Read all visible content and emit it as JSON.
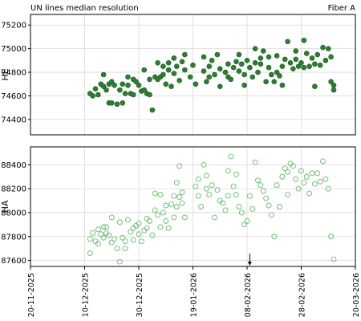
{
  "header": {
    "title": "UN lines median resolution",
    "right_label": "Fiber A"
  },
  "colors": {
    "he_fill": "#2e7d32",
    "he_edge": "#1b5e20",
    "ha_edge": "#66bb6a",
    "grid": "#d9d9d9",
    "axes": "#000000"
  },
  "chart_data": [
    {
      "type": "scatter",
      "panel": "top",
      "title": "UN lines median resolution",
      "ylabel": "HE",
      "xlim": [
        "2025-11-20",
        "2026-03-20"
      ],
      "ylim": [
        74270,
        75290
      ],
      "yticks": [
        74400,
        74600,
        74800,
        75000,
        75200
      ],
      "grid": true,
      "marker": "filled-circle",
      "series": [
        {
          "points": [
            [
              "2025-12-12",
              74620
            ],
            [
              "2025-12-13",
              74600
            ],
            [
              "2025-12-14",
              74660
            ],
            [
              "2025-12-15",
              74610
            ],
            [
              "2025-12-16",
              74700
            ],
            [
              "2025-12-17",
              74780
            ],
            [
              "2025-12-17",
              74680
            ],
            [
              "2025-12-18",
              74650
            ],
            [
              "2025-12-19",
              74540
            ],
            [
              "2025-12-19",
              74700
            ],
            [
              "2025-12-20",
              74720
            ],
            [
              "2025-12-20",
              74540
            ],
            [
              "2025-12-21",
              74690
            ],
            [
              "2025-12-22",
              74530
            ],
            [
              "2025-12-23",
              74650
            ],
            [
              "2025-12-24",
              74700
            ],
            [
              "2025-12-24",
              74540
            ],
            [
              "2025-12-25",
              74620
            ],
            [
              "2025-12-26",
              74690
            ],
            [
              "2025-12-26",
              74760
            ],
            [
              "2025-12-27",
              74620
            ],
            [
              "2025-12-28",
              74740
            ],
            [
              "2025-12-28",
              74610
            ],
            [
              "2025-12-29",
              74720
            ],
            [
              "2025-12-30",
              74690
            ],
            [
              "2025-12-31",
              74640
            ],
            [
              "2026-01-01",
              74820
            ],
            [
              "2026-01-01",
              74650
            ],
            [
              "2026-01-02",
              74620
            ],
            [
              "2026-01-03",
              74740
            ],
            [
              "2026-01-03",
              74610
            ],
            [
              "2026-01-04",
              74480
            ],
            [
              "2026-01-05",
              74760
            ],
            [
              "2026-01-06",
              74740
            ],
            [
              "2026-01-06",
              74880
            ],
            [
              "2026-01-07",
              74760
            ],
            [
              "2026-01-08",
              74850
            ],
            [
              "2026-01-08",
              74780
            ],
            [
              "2026-01-09",
              74700
            ],
            [
              "2026-01-10",
              74880
            ],
            [
              "2026-01-10",
              74820
            ],
            [
              "2026-01-11",
              74680
            ],
            [
              "2026-01-12",
              74920
            ],
            [
              "2026-01-12",
              74790
            ],
            [
              "2026-01-13",
              74850
            ],
            [
              "2026-01-14",
              74730
            ],
            [
              "2026-01-15",
              74890
            ],
            [
              "2026-01-16",
              74820
            ],
            [
              "2026-01-16",
              74950
            ],
            [
              "2026-01-18",
              74760
            ],
            [
              "2026-01-19",
              74860
            ],
            [
              "2026-01-20",
              74700
            ],
            [
              "2026-01-23",
              74810
            ],
            [
              "2026-01-23",
              74930
            ],
            [
              "2026-01-24",
              74720
            ],
            [
              "2026-01-25",
              74850
            ],
            [
              "2026-01-25",
              74760
            ],
            [
              "2026-01-26",
              74900
            ],
            [
              "2026-01-27",
              74780
            ],
            [
              "2026-01-28",
              74950
            ],
            [
              "2026-01-29",
              74830
            ],
            [
              "2026-01-29",
              74680
            ],
            [
              "2026-01-31",
              74800
            ],
            [
              "2026-02-01",
              74870
            ],
            [
              "2026-02-01",
              74760
            ],
            [
              "2026-02-02",
              74740
            ],
            [
              "2026-02-03",
              74840
            ],
            [
              "2026-02-04",
              74890
            ],
            [
              "2026-02-05",
              74810
            ],
            [
              "2026-02-05",
              74950
            ],
            [
              "2026-02-06",
              74870
            ],
            [
              "2026-02-07",
              74780
            ],
            [
              "2026-02-07",
              74690
            ],
            [
              "2026-02-08",
              74900
            ],
            [
              "2026-02-09",
              74840
            ],
            [
              "2026-02-10",
              74760
            ],
            [
              "2026-02-11",
              74880
            ],
            [
              "2026-02-11",
              75000
            ],
            [
              "2026-02-12",
              74800
            ],
            [
              "2026-02-13",
              74870
            ],
            [
              "2026-02-13",
              74920
            ],
            [
              "2026-02-14",
              74980
            ],
            [
              "2026-02-15",
              74720
            ],
            [
              "2026-02-16",
              74840
            ],
            [
              "2026-02-16",
              74930
            ],
            [
              "2026-02-17",
              74780
            ],
            [
              "2026-02-18",
              74720
            ],
            [
              "2026-02-19",
              74800
            ],
            [
              "2026-02-19",
              74940
            ],
            [
              "2026-02-20",
              74770
            ],
            [
              "2026-02-21",
              74690
            ],
            [
              "2026-02-21",
              74850
            ],
            [
              "2026-02-22",
              74910
            ],
            [
              "2026-02-23",
              75060
            ],
            [
              "2026-02-24",
              74880
            ],
            [
              "2026-02-25",
              74830
            ],
            [
              "2026-02-26",
              74980
            ],
            [
              "2026-02-26",
              74910
            ],
            [
              "2026-02-27",
              74850
            ],
            [
              "2026-02-28",
              74880
            ],
            [
              "2026-03-01",
              75070
            ],
            [
              "2026-03-01",
              74840
            ],
            [
              "2026-03-02",
              74960
            ],
            [
              "2026-03-03",
              74850
            ],
            [
              "2026-03-04",
              74920
            ],
            [
              "2026-03-05",
              74680
            ],
            [
              "2026-03-05",
              74870
            ],
            [
              "2026-03-06",
              74950
            ],
            [
              "2026-03-07",
              74860
            ],
            [
              "2026-03-08",
              75010
            ],
            [
              "2026-03-09",
              74900
            ],
            [
              "2026-03-10",
              75000
            ],
            [
              "2026-03-11",
              74930
            ],
            [
              "2026-03-11",
              74720
            ],
            [
              "2026-03-12",
              74650
            ],
            [
              "2026-03-12",
              74690
            ]
          ]
        }
      ]
    },
    {
      "type": "scatter",
      "panel": "bottom",
      "ylabel": "HA",
      "xlim": [
        "2025-11-20",
        "2026-03-20"
      ],
      "ylim": [
        87550,
        88550
      ],
      "yticks": [
        87600,
        87800,
        88000,
        88200,
        88400
      ],
      "grid": true,
      "marker": "hollow-circle",
      "arrow_date": "2026-02-09",
      "xticks": [
        "20-11-2025",
        "10-12-2025",
        "30-12-2025",
        "19-01-2026",
        "08-02-2026",
        "28-02-2026",
        "20-03-2026"
      ],
      "series": [
        {
          "points": [
            [
              "2025-12-12",
              87780
            ],
            [
              "2025-12-12",
              87660
            ],
            [
              "2025-12-13",
              87830
            ],
            [
              "2025-12-14",
              87760
            ],
            [
              "2025-12-15",
              87860
            ],
            [
              "2025-12-15",
              87740
            ],
            [
              "2025-12-16",
              87820
            ],
            [
              "2025-12-17",
              87880
            ],
            [
              "2025-12-17",
              87790
            ],
            [
              "2025-12-18",
              87880
            ],
            [
              "2025-12-18",
              87830
            ],
            [
              "2025-12-19",
              87810
            ],
            [
              "2025-12-20",
              87960
            ],
            [
              "2025-12-20",
              87750
            ],
            [
              "2025-12-21",
              87780
            ],
            [
              "2025-12-22",
              87700
            ],
            [
              "2025-12-23",
              87920
            ],
            [
              "2025-12-23",
              87590
            ],
            [
              "2025-12-24",
              87790
            ],
            [
              "2025-12-25",
              87760
            ],
            [
              "2025-12-25",
              87700
            ],
            [
              "2025-12-26",
              87940
            ],
            [
              "2025-12-27",
              87840
            ],
            [
              "2025-12-28",
              87870
            ],
            [
              "2025-12-28",
              87770
            ],
            [
              "2025-12-29",
              87890
            ],
            [
              "2025-12-30",
              87910
            ],
            [
              "2025-12-30",
              87820
            ],
            [
              "2025-12-31",
              87760
            ],
            [
              "2026-01-01",
              87850
            ],
            [
              "2026-01-02",
              87950
            ],
            [
              "2026-01-02",
              87870
            ],
            [
              "2026-01-03",
              87930
            ],
            [
              "2026-01-04",
              87810
            ],
            [
              "2026-01-05",
              88160
            ],
            [
              "2026-01-05",
              88020
            ],
            [
              "2026-01-06",
              87980
            ],
            [
              "2026-01-07",
              88150
            ],
            [
              "2026-01-07",
              87880
            ],
            [
              "2026-01-08",
              88000
            ],
            [
              "2026-01-09",
              87930
            ],
            [
              "2026-01-09",
              88060
            ],
            [
              "2026-01-10",
              87870
            ],
            [
              "2026-01-11",
              88070
            ],
            [
              "2026-01-12",
              88140
            ],
            [
              "2026-01-12",
              87960
            ],
            [
              "2026-01-13",
              88250
            ],
            [
              "2026-01-13",
              88050
            ],
            [
              "2026-01-14",
              88390
            ],
            [
              "2026-01-14",
              88130
            ],
            [
              "2026-01-15",
              88170
            ],
            [
              "2026-01-15",
              88080
            ],
            [
              "2026-01-16",
              87960
            ],
            [
              "2026-01-20",
              88220
            ],
            [
              "2026-01-21",
              88280
            ],
            [
              "2026-01-21",
              88140
            ],
            [
              "2026-01-22",
              88050
            ],
            [
              "2026-01-23",
              88400
            ],
            [
              "2026-01-24",
              88310
            ],
            [
              "2026-01-24",
              88200
            ],
            [
              "2026-01-25",
              88150
            ],
            [
              "2026-01-26",
              88230
            ],
            [
              "2026-01-27",
              87960
            ],
            [
              "2026-01-28",
              88190
            ],
            [
              "2026-01-29",
              88100
            ],
            [
              "2026-01-30",
              88080
            ],
            [
              "2026-01-31",
              88020
            ],
            [
              "2026-02-01",
              88350
            ],
            [
              "2026-02-01",
              88140
            ],
            [
              "2026-02-02",
              88470
            ],
            [
              "2026-02-03",
              88220
            ],
            [
              "2026-02-04",
              88320
            ],
            [
              "2026-02-04",
              88150
            ],
            [
              "2026-02-05",
              88050
            ],
            [
              "2026-02-06",
              88000
            ],
            [
              "2026-02-07",
              87900
            ],
            [
              "2026-02-08",
              87930
            ],
            [
              "2026-02-09",
              88140
            ],
            [
              "2026-02-10",
              88030
            ],
            [
              "2026-02-11",
              88420
            ],
            [
              "2026-02-12",
              88270
            ],
            [
              "2026-02-13",
              88230
            ],
            [
              "2026-02-14",
              88180
            ],
            [
              "2026-02-15",
              88120
            ],
            [
              "2026-02-16",
              88060
            ],
            [
              "2026-02-17",
              87980
            ],
            [
              "2026-02-18",
              87800
            ],
            [
              "2026-02-19",
              88230
            ],
            [
              "2026-02-20",
              88050
            ],
            [
              "2026-02-21",
              88300
            ],
            [
              "2026-02-22",
              88370
            ],
            [
              "2026-02-23",
              88340
            ],
            [
              "2026-02-23",
              88150
            ],
            [
              "2026-02-24",
              88410
            ],
            [
              "2026-02-25",
              88390
            ],
            [
              "2026-02-26",
              88280
            ],
            [
              "2026-02-27",
              88200
            ],
            [
              "2026-02-28",
              88350
            ],
            [
              "2026-03-01",
              88250
            ],
            [
              "2026-03-02",
              88300
            ],
            [
              "2026-03-03",
              88160
            ],
            [
              "2026-03-04",
              88330
            ],
            [
              "2026-03-05",
              88240
            ],
            [
              "2026-03-06",
              88330
            ],
            [
              "2026-03-07",
              88260
            ],
            [
              "2026-03-08",
              88430
            ],
            [
              "2026-03-09",
              88280
            ],
            [
              "2026-03-10",
              88200
            ],
            [
              "2026-03-11",
              87800
            ],
            [
              "2026-03-12",
              87610
            ]
          ]
        }
      ]
    }
  ]
}
